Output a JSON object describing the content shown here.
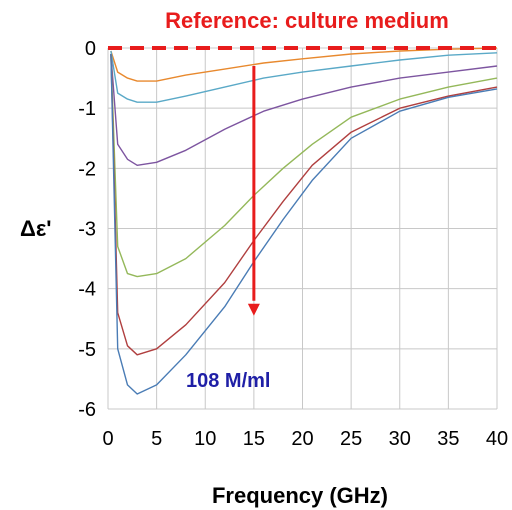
{
  "chart_data": {
    "type": "line",
    "xlabel": "Frequency (GHz)",
    "ylabel": "Δε'",
    "xlim": [
      0,
      40
    ],
    "ylim": [
      -6,
      0
    ],
    "x_ticks": [
      0,
      5,
      10,
      15,
      20,
      25,
      30,
      35,
      40
    ],
    "y_ticks": [
      0,
      -1,
      -2,
      -3,
      -4,
      -5,
      -6
    ],
    "grid": true,
    "annotations": {
      "reference": "Reference: culture medium",
      "concentration": "108 M/ml"
    },
    "colors": {
      "reference": "#e81c1c",
      "arrow": "#e81c1c",
      "concentration_text": "#1f1fa6",
      "grid": "#c8c8c8"
    },
    "series": [
      {
        "color": "#e8892e",
        "x": [
          0.3,
          1,
          2,
          3,
          5,
          8,
          12,
          16,
          20,
          25,
          30,
          35,
          40
        ],
        "y": [
          -0.05,
          -0.4,
          -0.5,
          -0.55,
          -0.55,
          -0.45,
          -0.35,
          -0.25,
          -0.18,
          -0.1,
          -0.05,
          -0.02,
          0
        ]
      },
      {
        "color": "#5aa9c7",
        "x": [
          0.3,
          1,
          2,
          3,
          5,
          8,
          12,
          16,
          20,
          25,
          30,
          35,
          40
        ],
        "y": [
          -0.05,
          -0.75,
          -0.85,
          -0.9,
          -0.9,
          -0.8,
          -0.65,
          -0.5,
          -0.4,
          -0.3,
          -0.2,
          -0.12,
          -0.08
        ]
      },
      {
        "color": "#7d55a0",
        "x": [
          0.3,
          1,
          2,
          3,
          5,
          8,
          12,
          16,
          20,
          25,
          30,
          35,
          40
        ],
        "y": [
          -0.1,
          -1.6,
          -1.85,
          -1.95,
          -1.9,
          -1.7,
          -1.35,
          -1.05,
          -0.85,
          -0.65,
          -0.5,
          -0.4,
          -0.3
        ]
      },
      {
        "color": "#94b85a",
        "x": [
          0.3,
          1,
          2,
          3,
          5,
          8,
          12,
          15,
          18,
          21,
          25,
          30,
          35,
          40
        ],
        "y": [
          -0.1,
          -3.3,
          -3.75,
          -3.8,
          -3.75,
          -3.5,
          -2.95,
          -2.45,
          -2.0,
          -1.6,
          -1.15,
          -0.85,
          -0.65,
          -0.5
        ]
      },
      {
        "color": "#b03f3f",
        "x": [
          0.3,
          1,
          2,
          3,
          5,
          8,
          12,
          15,
          18,
          21,
          25,
          30,
          35,
          40
        ],
        "y": [
          -0.1,
          -4.4,
          -4.95,
          -5.1,
          -5.0,
          -4.6,
          -3.9,
          -3.2,
          -2.55,
          -1.95,
          -1.4,
          -1.0,
          -0.8,
          -0.65
        ]
      },
      {
        "color": "#4a7cb5",
        "x": [
          0.3,
          1,
          2,
          3,
          5,
          8,
          12,
          15,
          18,
          21,
          25,
          30,
          35,
          40
        ],
        "y": [
          -0.1,
          -5.0,
          -5.6,
          -5.75,
          -5.6,
          -5.1,
          -4.3,
          -3.55,
          -2.85,
          -2.2,
          -1.5,
          -1.05,
          -0.82,
          -0.68
        ]
      }
    ]
  }
}
